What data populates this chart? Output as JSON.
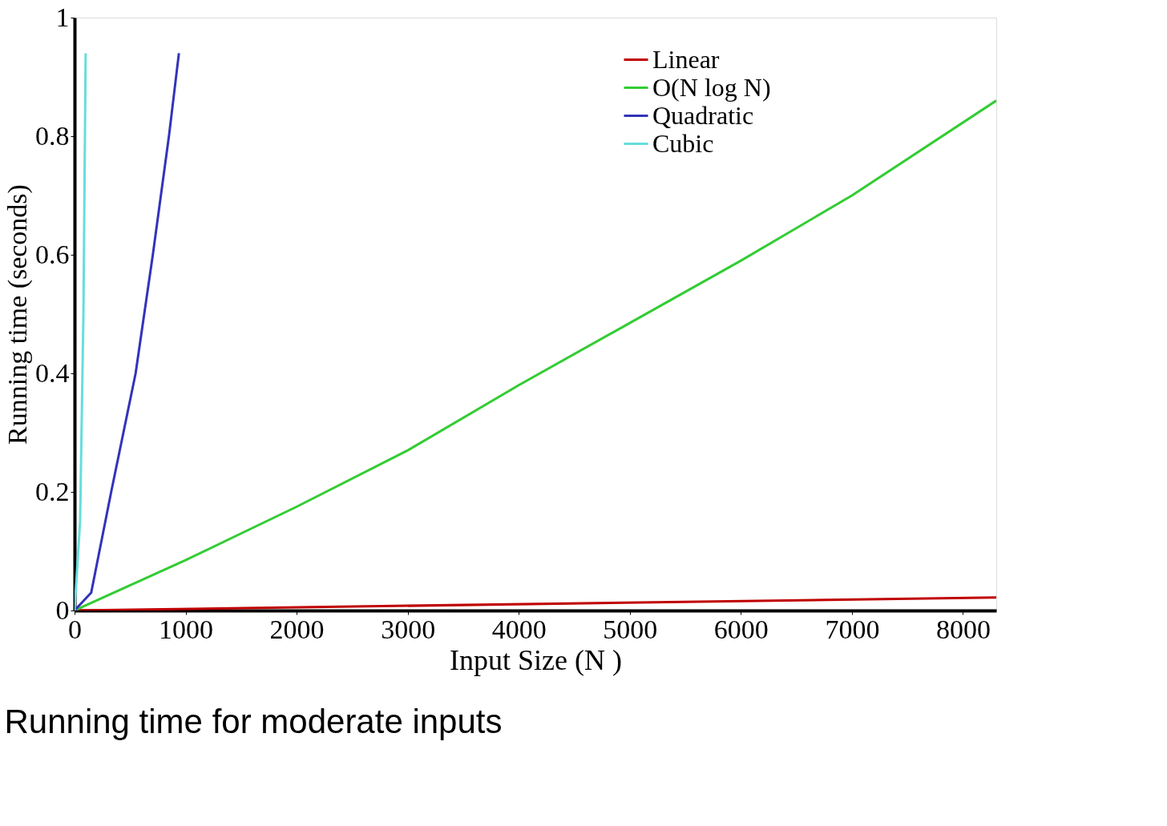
{
  "chart_data": {
    "type": "line",
    "title": "Running time for moderate inputs",
    "xlabel": "Input Size (N )",
    "ylabel": "Running time (seconds)",
    "xlim": [
      0,
      8300
    ],
    "xticks": [
      0,
      1000,
      2000,
      3000,
      4000,
      5000,
      6000,
      7000,
      8000
    ],
    "ylim": [
      0,
      1
    ],
    "yticks": [
      0,
      0.2,
      0.4,
      0.6,
      0.8,
      1
    ],
    "grid": false,
    "legend": "top right",
    "marker": "none",
    "line_style": "solid",
    "series": [
      {
        "name": "Linear",
        "color": "#c00000",
        "x": [
          0,
          8300
        ],
        "values": [
          0,
          0.022
        ]
      },
      {
        "name": "O(N log N)",
        "color": "#33cc33",
        "x": [
          0,
          1000,
          2000,
          3000,
          4000,
          5000,
          6000,
          7000,
          8300
        ],
        "values": [
          0,
          0.085,
          0.175,
          0.27,
          0.38,
          0.485,
          0.59,
          0.7,
          0.86
        ]
      },
      {
        "name": "Quadratic",
        "color": "#3333bb",
        "x": [
          0,
          150,
          330,
          550,
          705,
          850,
          940
        ],
        "values": [
          0,
          0.03,
          0.2,
          0.4,
          0.6,
          0.8,
          0.94
        ]
      },
      {
        "name": "Cubic",
        "color": "#66dddd",
        "x": [
          0,
          50,
          80,
          100
        ],
        "values": [
          0,
          0.15,
          0.5,
          0.94
        ]
      }
    ]
  }
}
